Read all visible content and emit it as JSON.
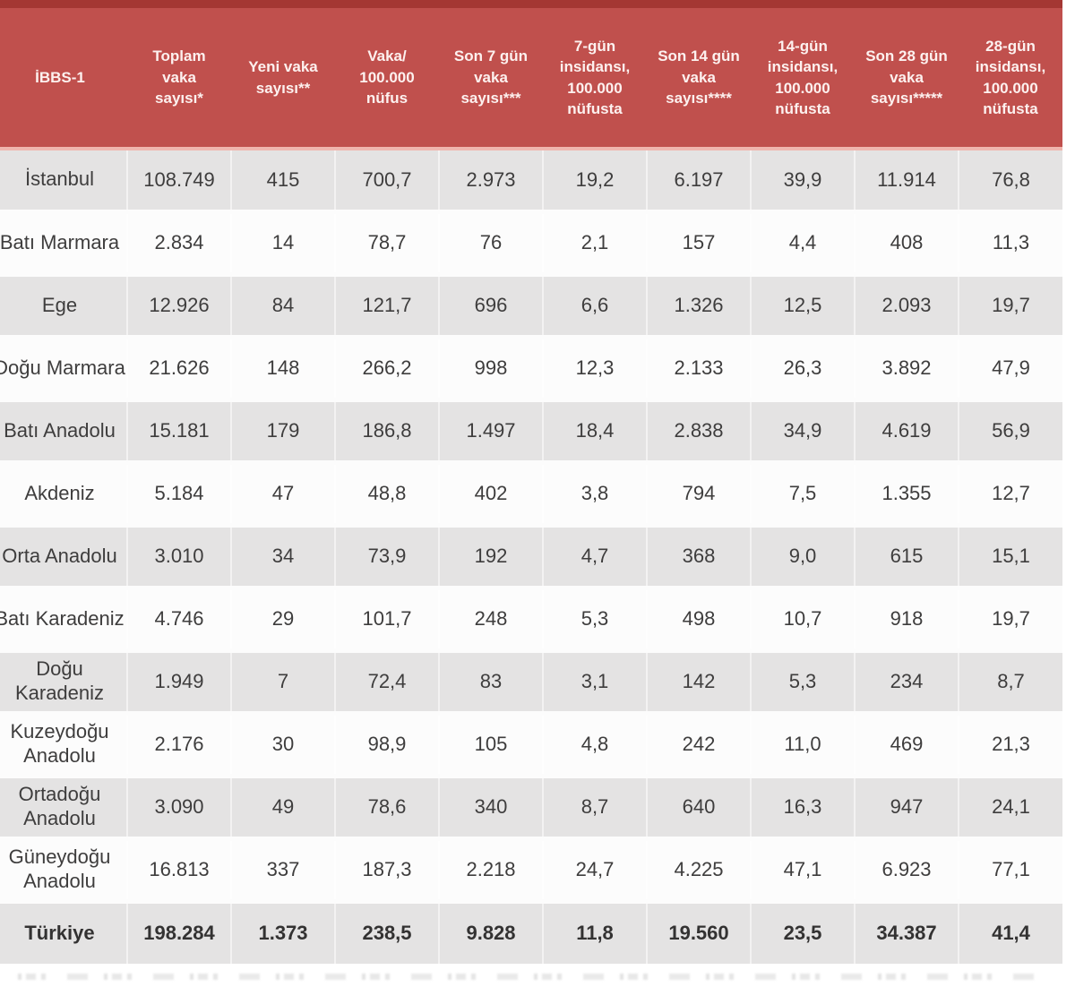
{
  "chart_data": {
    "type": "table",
    "columns": [
      "İBBS-1",
      "Toplam\nvaka\nsayısı*",
      "Yeni vaka\nsayısı**",
      "Vaka/\n100.000\nnüfus",
      "Son 7 gün\nvaka\nsayısı***",
      "7-gün\ninsidansı,\n100.000\nnüfusta",
      "Son 14 gün\nvaka\nsayısı****",
      "14-gün\ninsidansı,\n100.000\nnüfusta",
      "Son 28 gün\nvaka\nsayısı*****",
      "28-gün\ninsidansı,\n100.000\nnüfusta"
    ],
    "rows": [
      {
        "region": "İstanbul",
        "values": [
          "108.749",
          "415",
          "700,7",
          "2.973",
          "19,2",
          "6.197",
          "39,9",
          "11.914",
          "76,8"
        ]
      },
      {
        "region": "Batı Marmara",
        "values": [
          "2.834",
          "14",
          "78,7",
          "76",
          "2,1",
          "157",
          "4,4",
          "408",
          "11,3"
        ]
      },
      {
        "region": "Ege",
        "values": [
          "12.926",
          "84",
          "121,7",
          "696",
          "6,6",
          "1.326",
          "12,5",
          "2.093",
          "19,7"
        ]
      },
      {
        "region": "Doğu Marmara",
        "values": [
          "21.626",
          "148",
          "266,2",
          "998",
          "12,3",
          "2.133",
          "26,3",
          "3.892",
          "47,9"
        ]
      },
      {
        "region": "Batı Anadolu",
        "values": [
          "15.181",
          "179",
          "186,8",
          "1.497",
          "18,4",
          "2.838",
          "34,9",
          "4.619",
          "56,9"
        ]
      },
      {
        "region": "Akdeniz",
        "values": [
          "5.184",
          "47",
          "48,8",
          "402",
          "3,8",
          "794",
          "7,5",
          "1.355",
          "12,7"
        ]
      },
      {
        "region": "Orta Anadolu",
        "values": [
          "3.010",
          "34",
          "73,9",
          "192",
          "4,7",
          "368",
          "9,0",
          "615",
          "15,1"
        ]
      },
      {
        "region": "Batı Karadeniz",
        "values": [
          "4.746",
          "29",
          "101,7",
          "248",
          "5,3",
          "498",
          "10,7",
          "918",
          "19,7"
        ]
      },
      {
        "region": "Doğu\nKaradeniz",
        "values": [
          "1.949",
          "7",
          "72,4",
          "83",
          "3,1",
          "142",
          "5,3",
          "234",
          "8,7"
        ]
      },
      {
        "region": "Kuzeydoğu\nAnadolu",
        "values": [
          "2.176",
          "30",
          "98,9",
          "105",
          "4,8",
          "242",
          "11,0",
          "469",
          "21,3"
        ]
      },
      {
        "region": "Ortadoğu\nAnadolu",
        "values": [
          "3.090",
          "49",
          "78,6",
          "340",
          "8,7",
          "640",
          "16,3",
          "947",
          "24,1"
        ]
      },
      {
        "region": "Güneydoğu\nAnadolu",
        "values": [
          "16.813",
          "337",
          "187,3",
          "2.218",
          "24,7",
          "4.225",
          "47,1",
          "6.923",
          "77,1"
        ]
      }
    ],
    "total_row": {
      "region": "Türkiye",
      "values": [
        "198.284",
        "1.373",
        "238,5",
        "9.828",
        "11,8",
        "19.560",
        "23,5",
        "34.387",
        "41,4"
      ]
    },
    "legend_position": "none",
    "grid": "white gridlines, alternating row shading starting gray"
  },
  "colors": {
    "accent_dark_bar": "#a43733",
    "header_background": "#c0504d",
    "header_text": "#fdf1ef",
    "header_divider_pink": "#f0b5ae",
    "row_gray": "#e4e3e3",
    "row_white": "#fcfcfc",
    "cell_text": "#3e3d3d"
  },
  "footnote": {
    "clipped": true
  }
}
